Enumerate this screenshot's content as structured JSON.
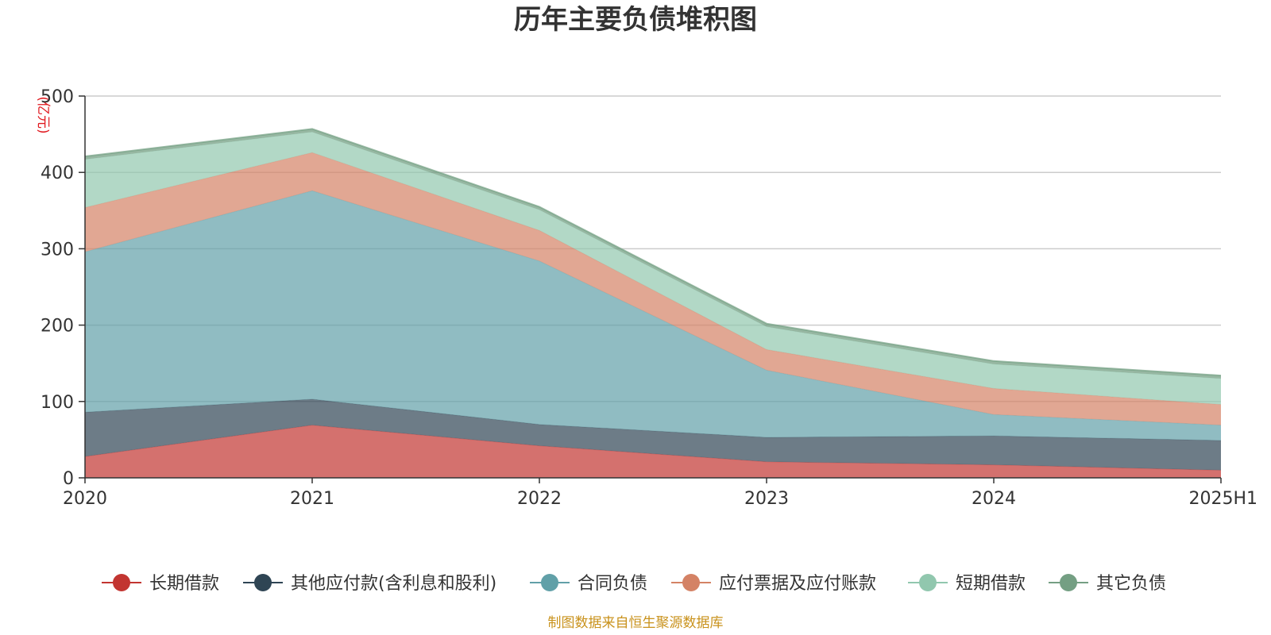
{
  "chart_data": {
    "type": "area",
    "stacked": true,
    "title": "历年主要负债堆积图",
    "ylabel": "(亿元)",
    "xlabel": "",
    "categories": [
      "2020",
      "2021",
      "2022",
      "2023",
      "2024",
      "2025H1"
    ],
    "ylim": [
      0,
      500
    ],
    "yticks": [
      0,
      100,
      200,
      300,
      400,
      500
    ],
    "grid": true,
    "legend_position": "bottom",
    "series": [
      {
        "name": "长期借款",
        "color": "#c23531",
        "values": [
          28,
          69,
          42,
          21,
          17,
          10
        ]
      },
      {
        "name": "其他应付款(含利息和股利)",
        "color": "#2f4554",
        "values": [
          58,
          34,
          28,
          32,
          38,
          39
        ]
      },
      {
        "name": "合同负债",
        "color": "#61a0a8",
        "values": [
          210,
          273,
          214,
          88,
          28,
          20
        ]
      },
      {
        "name": "应付票据及应付账款",
        "color": "#d48265",
        "values": [
          58,
          50,
          40,
          27,
          34,
          27
        ]
      },
      {
        "name": "短期借款",
        "color": "#91c7ae",
        "values": [
          63,
          27,
          27,
          30,
          32,
          34
        ]
      },
      {
        "name": "其它负债",
        "color": "#749f83",
        "values": [
          4,
          4,
          4,
          4,
          4,
          4
        ]
      }
    ],
    "source": "制图数据来自恒生聚源数据库"
  }
}
